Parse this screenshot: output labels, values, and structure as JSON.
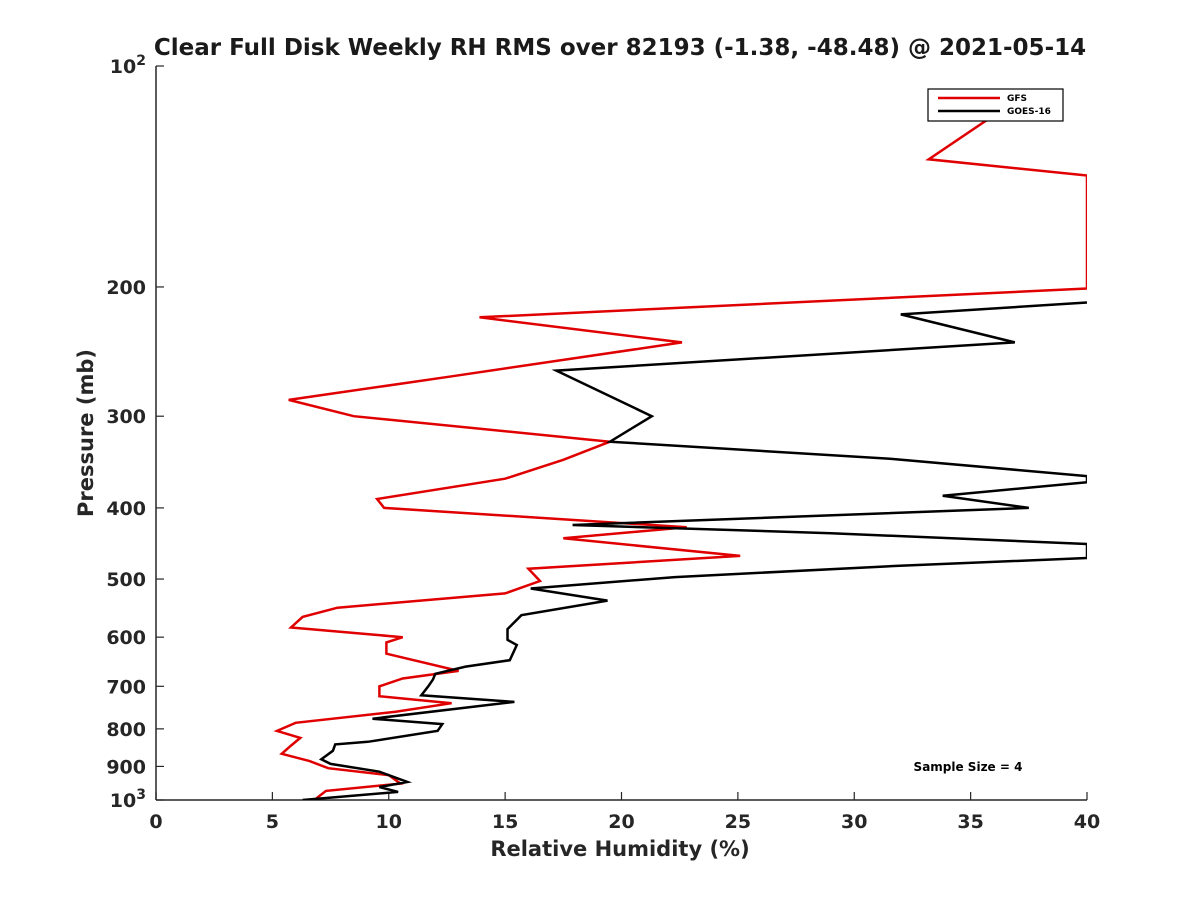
{
  "chart_data": {
    "type": "line",
    "title": "Clear Full Disk Weekly RH RMS over 82193 (-1.38, -48.48) @ 2021-05-14",
    "xlabel": "Relative Humidity (%)",
    "ylabel": "Pressure (mb)",
    "xlim": [
      0,
      40
    ],
    "ylim": [
      100,
      1000
    ],
    "y_scale": "log",
    "y_reversed": true,
    "x_ticks": [
      "0",
      "5",
      "10",
      "15",
      "20",
      "25",
      "30",
      "35",
      "40"
    ],
    "y_ticks": [
      {
        "value": 100,
        "base": "10",
        "exp": "2"
      },
      {
        "value": 200,
        "label": "200"
      },
      {
        "value": 300,
        "label": "300"
      },
      {
        "value": 400,
        "label": "400"
      },
      {
        "value": 500,
        "label": "500"
      },
      {
        "value": 600,
        "label": "600"
      },
      {
        "value": 700,
        "label": "700"
      },
      {
        "value": 800,
        "label": "800"
      },
      {
        "value": 900,
        "label": "900"
      },
      {
        "value": 1000,
        "base": "10",
        "exp": "3"
      }
    ],
    "grid": false,
    "legend_position": "top-right",
    "annotation": "Sample Size = 4",
    "series": [
      {
        "name": "GFS",
        "color": "#e00000",
        "points": [
          [
            36.3,
            115
          ],
          [
            33.2,
            134
          ],
          [
            40.0,
            141
          ],
          [
            40.0,
            201
          ],
          [
            13.9,
            220
          ],
          [
            22.6,
            238
          ],
          [
            12.6,
            265
          ],
          [
            5.7,
            285
          ],
          [
            8.5,
            300
          ],
          [
            19.5,
            325
          ],
          [
            17.5,
            344
          ],
          [
            15.0,
            365
          ],
          [
            9.5,
            389
          ],
          [
            9.8,
            400
          ],
          [
            22.8,
            425
          ],
          [
            17.5,
            440
          ],
          [
            25.1,
            465
          ],
          [
            16.0,
            484
          ],
          [
            16.5,
            503
          ],
          [
            15.0,
            523
          ],
          [
            7.8,
            547
          ],
          [
            6.3,
            563
          ],
          [
            5.8,
            582
          ],
          [
            10.6,
            600
          ],
          [
            9.9,
            610
          ],
          [
            9.9,
            632
          ],
          [
            13.0,
            667
          ],
          [
            10.6,
            683
          ],
          [
            9.6,
            700
          ],
          [
            9.6,
            722
          ],
          [
            12.7,
            738
          ],
          [
            10.3,
            758
          ],
          [
            6.0,
            785
          ],
          [
            5.2,
            805
          ],
          [
            6.2,
            823
          ],
          [
            5.8,
            843
          ],
          [
            5.4,
            865
          ],
          [
            6.6,
            885
          ],
          [
            7.4,
            905
          ],
          [
            10.0,
            925
          ],
          [
            10.5,
            950
          ],
          [
            7.3,
            972
          ],
          [
            6.8,
            1000
          ]
        ]
      },
      {
        "name": "GOES-16",
        "color": "#000000",
        "points": [
          [
            40.0,
            210
          ],
          [
            32.0,
            218
          ],
          [
            36.9,
            238
          ],
          [
            17.2,
            260
          ],
          [
            21.3,
            300
          ],
          [
            19.5,
            325
          ],
          [
            31.6,
            343
          ],
          [
            40.0,
            362
          ],
          [
            40.0,
            369
          ],
          [
            33.8,
            385
          ],
          [
            37.5,
            400
          ],
          [
            17.9,
            422
          ],
          [
            29.0,
            433
          ],
          [
            40.0,
            448
          ],
          [
            40.0,
            468
          ],
          [
            31.7,
            480
          ],
          [
            22.3,
            497
          ],
          [
            16.1,
            515
          ],
          [
            19.4,
            535
          ],
          [
            15.7,
            560
          ],
          [
            15.1,
            585
          ],
          [
            15.1,
            605
          ],
          [
            15.5,
            615
          ],
          [
            15.2,
            645
          ],
          [
            13.3,
            658
          ],
          [
            12.0,
            673
          ],
          [
            11.9,
            685
          ],
          [
            11.7,
            700
          ],
          [
            11.4,
            720
          ],
          [
            15.4,
            735
          ],
          [
            9.3,
            775
          ],
          [
            12.3,
            788
          ],
          [
            12.1,
            805
          ],
          [
            9.1,
            833
          ],
          [
            7.7,
            840
          ],
          [
            7.6,
            857
          ],
          [
            7.1,
            880
          ],
          [
            7.5,
            893
          ],
          [
            9.6,
            915
          ],
          [
            10.8,
            945
          ],
          [
            9.6,
            960
          ],
          [
            10.4,
            975
          ],
          [
            6.3,
            1000
          ]
        ]
      }
    ]
  }
}
